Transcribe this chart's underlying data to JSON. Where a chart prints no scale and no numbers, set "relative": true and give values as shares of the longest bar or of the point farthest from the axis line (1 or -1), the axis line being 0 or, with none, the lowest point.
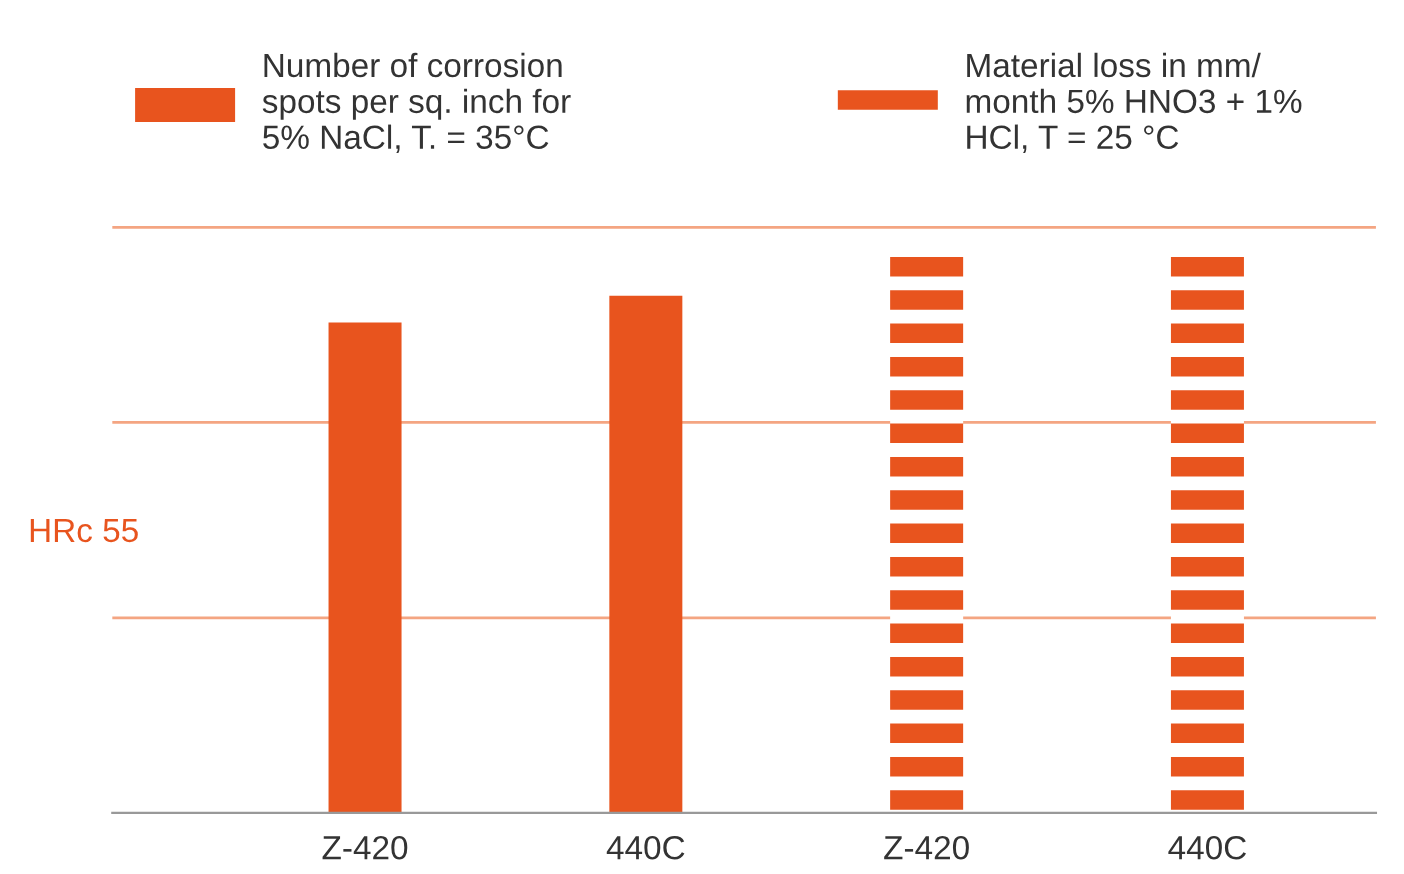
{
  "chart_data": {
    "type": "bar",
    "relative": true,
    "categories": [
      "Z-420",
      "440C",
      "Z-420",
      "440C"
    ],
    "ylabel": "HRc 55",
    "series": [
      {
        "name": "Number of corrosion\nspots per sq. inch for\n5% NaCl, T. = 35°C",
        "color": "#e8541e",
        "values": [
          0.875,
          0.923,
          null,
          null
        ]
      },
      {
        "name": "Material loss in mm/\nmonth 5% HNO3 + 1%\nHCl, T = 25 °C",
        "color": "#e8541e",
        "values": [
          null,
          null,
          1,
          1
        ]
      }
    ],
    "ref_lines": [
      {
        "axis": "y",
        "value": 0.348,
        "color": "#f4a582"
      },
      {
        "axis": "y",
        "value": 0.697,
        "color": "#f4a582"
      },
      {
        "axis": "y",
        "value": 1.045,
        "color": "#f4a582"
      }
    ],
    "legend": "top"
  }
}
